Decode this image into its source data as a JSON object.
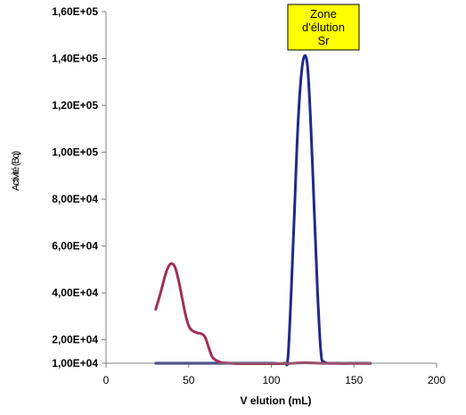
{
  "chart_data": {
    "type": "line",
    "xlabel": "V elution (mL)",
    "ylabel": "Activité (Bq)",
    "xlim": [
      0,
      200
    ],
    "ylim": [
      10000,
      160000
    ],
    "x_ticks": [
      "0",
      "50",
      "100",
      "150",
      "200"
    ],
    "y_ticks": [
      "1,00E+04",
      "2,00E+04",
      "4,00E+04",
      "6,00E+04",
      "8,00E+04",
      "1,00E+05",
      "1,20E+05",
      "1,40E+05",
      "1,60E+05"
    ],
    "grid": false,
    "annotation": {
      "lines": [
        "Zone",
        "d'élution",
        "Sr"
      ],
      "color": "#ffff00"
    },
    "series": [
      {
        "color": "#1f2a8a",
        "points": [
          [
            30,
            10000
          ],
          [
            40,
            10000
          ],
          [
            50,
            10000
          ],
          [
            60,
            10000
          ],
          [
            70,
            10000
          ],
          [
            80,
            10000
          ],
          [
            90,
            10000
          ],
          [
            100,
            10000
          ],
          [
            108,
            10000
          ],
          [
            110,
            12000
          ],
          [
            112,
            40000
          ],
          [
            114,
            75000
          ],
          [
            116,
            110000
          ],
          [
            118,
            132000
          ],
          [
            120,
            141000
          ],
          [
            122,
            136000
          ],
          [
            124,
            110000
          ],
          [
            126,
            75000
          ],
          [
            128,
            40000
          ],
          [
            130,
            15000
          ],
          [
            132,
            10500
          ],
          [
            140,
            10000
          ],
          [
            150,
            10000
          ],
          [
            160,
            10000
          ]
        ]
      },
      {
        "color": "#a0305a",
        "points": [
          [
            30,
            33000
          ],
          [
            33,
            40000
          ],
          [
            36,
            48000
          ],
          [
            38,
            51500
          ],
          [
            40,
            52500
          ],
          [
            42,
            50500
          ],
          [
            44,
            45000
          ],
          [
            46,
            38000
          ],
          [
            48,
            31000
          ],
          [
            50,
            26000
          ],
          [
            52,
            24000
          ],
          [
            55,
            23000
          ],
          [
            58,
            22500
          ],
          [
            60,
            21000
          ],
          [
            62,
            17000
          ],
          [
            64,
            13000
          ],
          [
            66,
            11500
          ],
          [
            68,
            10800
          ],
          [
            70,
            10300
          ],
          [
            75,
            10000
          ],
          [
            80,
            9800
          ],
          [
            90,
            9800
          ],
          [
            100,
            9800
          ],
          [
            110,
            9900
          ],
          [
            120,
            10200
          ],
          [
            130,
            10000
          ],
          [
            140,
            9900
          ],
          [
            150,
            9900
          ],
          [
            160,
            9900
          ]
        ]
      }
    ]
  }
}
